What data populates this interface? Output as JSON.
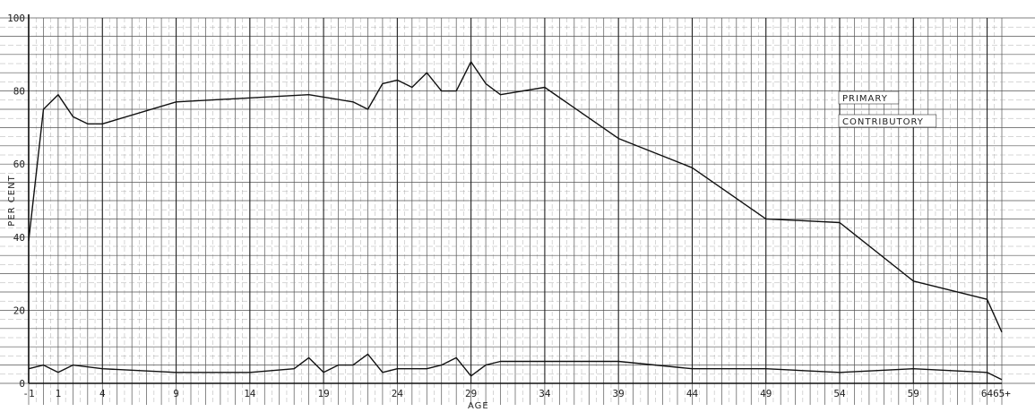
{
  "chart_data": {
    "type": "line",
    "xlabel": "AGE",
    "ylabel": "PER CENT",
    "xlim": [
      -1,
      65
    ],
    "ylim": [
      0,
      100
    ],
    "x_tick_labels": [
      "-1",
      "1",
      "4",
      "9",
      "14",
      "19",
      "24",
      "29",
      "34",
      "39",
      "44",
      "49",
      "54",
      "59",
      "64",
      "65+"
    ],
    "y_tick_labels": [
      "20",
      "40",
      "60",
      "80",
      "100"
    ],
    "grid": true,
    "legend_position": "top-right",
    "series": [
      {
        "name": "PRIMARY",
        "x": [
          -1,
          0,
          1,
          2,
          3,
          4,
          9,
          18,
          21,
          22,
          23,
          24,
          25,
          26,
          27,
          28,
          29,
          30,
          31,
          34,
          39,
          44,
          49,
          54,
          59,
          64,
          65
        ],
        "y": [
          39,
          75,
          79,
          73,
          71,
          71,
          77,
          79,
          77,
          75,
          82,
          83,
          81,
          85,
          80,
          80,
          88,
          82,
          79,
          81,
          67,
          59,
          45,
          44,
          28,
          23,
          14
        ]
      },
      {
        "name": "CONTRIBUTORY",
        "x": [
          -1,
          0,
          1,
          2,
          4,
          9,
          14,
          17,
          18,
          19,
          20,
          21,
          22,
          23,
          24,
          25,
          26,
          27,
          28,
          29,
          30,
          31,
          34,
          39,
          44,
          49,
          54,
          59,
          64,
          65
        ],
        "y": [
          4,
          5,
          3,
          5,
          4,
          3,
          3,
          4,
          7,
          3,
          5,
          5,
          8,
          3,
          4,
          4,
          4,
          5,
          7,
          2,
          5,
          6,
          6,
          6,
          4,
          4,
          3,
          4,
          3,
          1
        ]
      }
    ]
  }
}
